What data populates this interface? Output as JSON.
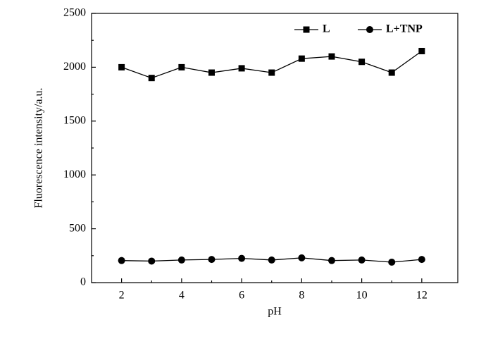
{
  "chart_data": {
    "type": "line",
    "x_label": "pH",
    "y_label": "Fluorescence intensity/a.u.",
    "x": [
      2,
      3,
      4,
      5,
      6,
      7,
      8,
      9,
      10,
      11,
      12
    ],
    "series": [
      {
        "name": "L",
        "color": "#000000",
        "marker": "square",
        "values": [
          2000,
          1900,
          2000,
          1950,
          1990,
          1950,
          2080,
          2100,
          2050,
          1950,
          2150
        ]
      },
      {
        "name": "L+TNP",
        "color": "#000000",
        "marker": "circle",
        "values": [
          205,
          200,
          210,
          215,
          225,
          210,
          230,
          205,
          210,
          190,
          215
        ]
      }
    ],
    "xlim": [
      1,
      13.2
    ],
    "xticks": [
      2,
      4,
      6,
      8,
      10,
      12
    ],
    "ylim": [
      0,
      2500
    ],
    "yticks": [
      0,
      500,
      1000,
      1500,
      2000,
      2500
    ],
    "legend": "upper right"
  }
}
